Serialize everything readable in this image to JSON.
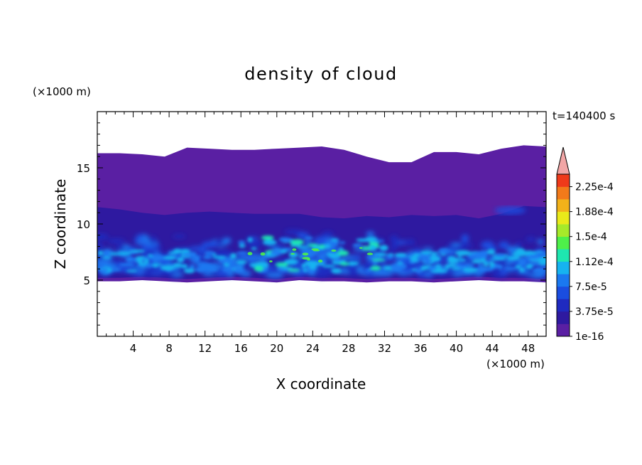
{
  "chart_data": {
    "type": "heatmap",
    "title": "density of cloud",
    "time_label": "t=140400 s",
    "xlabel": "X coordinate",
    "ylabel": "Z coordinate",
    "x_unit": "(×1000 m)",
    "y_unit": "(×1000 m)",
    "xlim": [
      0,
      50
    ],
    "ylim": [
      0,
      20
    ],
    "x_ticks": [
      4,
      8,
      12,
      16,
      20,
      24,
      28,
      32,
      36,
      40,
      44,
      48
    ],
    "y_ticks": [
      5,
      10,
      15
    ],
    "colorbar": {
      "labels": [
        "1e-16",
        "3.75e-5",
        "7.5e-5",
        "1.12e-4",
        "1.5e-4",
        "1.88e-4",
        "2.25e-4"
      ],
      "label_positions": [
        0,
        2,
        4,
        6,
        8,
        10,
        12
      ],
      "levels": 13,
      "colors": [
        "#5a1fa3",
        "#2e19a0",
        "#1f2ac0",
        "#1a4de0",
        "#1a78f0",
        "#16b3f0",
        "#1ee6b0",
        "#4ef04a",
        "#a6ea2a",
        "#eaea1a",
        "#f2b21a",
        "#f27a1a",
        "#ef3a1a"
      ],
      "overflow_color": "#f2a6a6"
    },
    "cloud_layer": {
      "x_range": [
        0,
        50
      ],
      "bottom_z": [
        4.9,
        4.9,
        5.0,
        4.9,
        4.8,
        4.9,
        5.0,
        4.9,
        4.8,
        5.0,
        4.9,
        4.9,
        4.8,
        4.9,
        4.9,
        4.8,
        4.9,
        5.0,
        4.9,
        4.9,
        4.8
      ],
      "top_z": [
        16.3,
        16.3,
        16.2,
        16.0,
        16.8,
        16.7,
        16.6,
        16.6,
        16.7,
        16.8,
        16.9,
        16.6,
        16.0,
        15.5,
        15.5,
        16.4,
        16.4,
        16.2,
        16.7,
        17.0,
        16.9
      ],
      "moderate_band_top_z": [
        11.5,
        11.3,
        11.0,
        10.8,
        11.0,
        11.1,
        11.0,
        10.9,
        10.9,
        10.9,
        10.6,
        10.5,
        10.7,
        10.6,
        10.8,
        10.7,
        10.8,
        10.5,
        10.9,
        11.6,
        11.5
      ],
      "max_density_region": "x 17-31, z 6.5-8",
      "max_density_value": 0.00015
    }
  }
}
